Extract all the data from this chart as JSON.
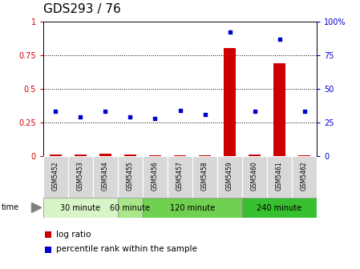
{
  "title": "GDS293 / 76",
  "samples": [
    "GSM5452",
    "GSM5453",
    "GSM5454",
    "GSM5455",
    "GSM5456",
    "GSM5457",
    "GSM5458",
    "GSM5459",
    "GSM5460",
    "GSM5461",
    "GSM5462"
  ],
  "log_ratio": [
    0.01,
    0.01,
    0.02,
    0.01,
    0.005,
    0.003,
    0.003,
    0.8,
    0.01,
    0.69,
    0.005
  ],
  "percentile_rank": [
    33,
    29,
    33,
    29,
    28,
    34,
    31,
    92,
    33,
    87,
    33
  ],
  "bar_color": "#cc0000",
  "dot_color": "#0000cc",
  "ylim_left": [
    0,
    1
  ],
  "ylim_right": [
    0,
    100
  ],
  "yticks_left": [
    0,
    0.25,
    0.5,
    0.75,
    1
  ],
  "ytick_labels_left": [
    "0",
    "0.25",
    "0.5",
    "0.75",
    "1"
  ],
  "yticks_right": [
    0,
    25,
    50,
    75,
    100
  ],
  "ytick_labels_right": [
    "0",
    "25",
    "50",
    "75",
    "100%"
  ],
  "bg_color": "#ffffff",
  "title_fontsize": 11,
  "legend_log_ratio_label": "log ratio",
  "legend_percentile_label": "percentile rank within the sample",
  "groups": [
    {
      "label": "30 minute",
      "start": 0,
      "end": 3,
      "color": "#d8f5c8"
    },
    {
      "label": "60 minute",
      "start": 3,
      "end": 4,
      "color": "#a8e888"
    },
    {
      "label": "120 minute",
      "start": 4,
      "end": 8,
      "color": "#70d050"
    },
    {
      "label": "240 minute",
      "start": 8,
      "end": 11,
      "color": "#38c030"
    }
  ]
}
